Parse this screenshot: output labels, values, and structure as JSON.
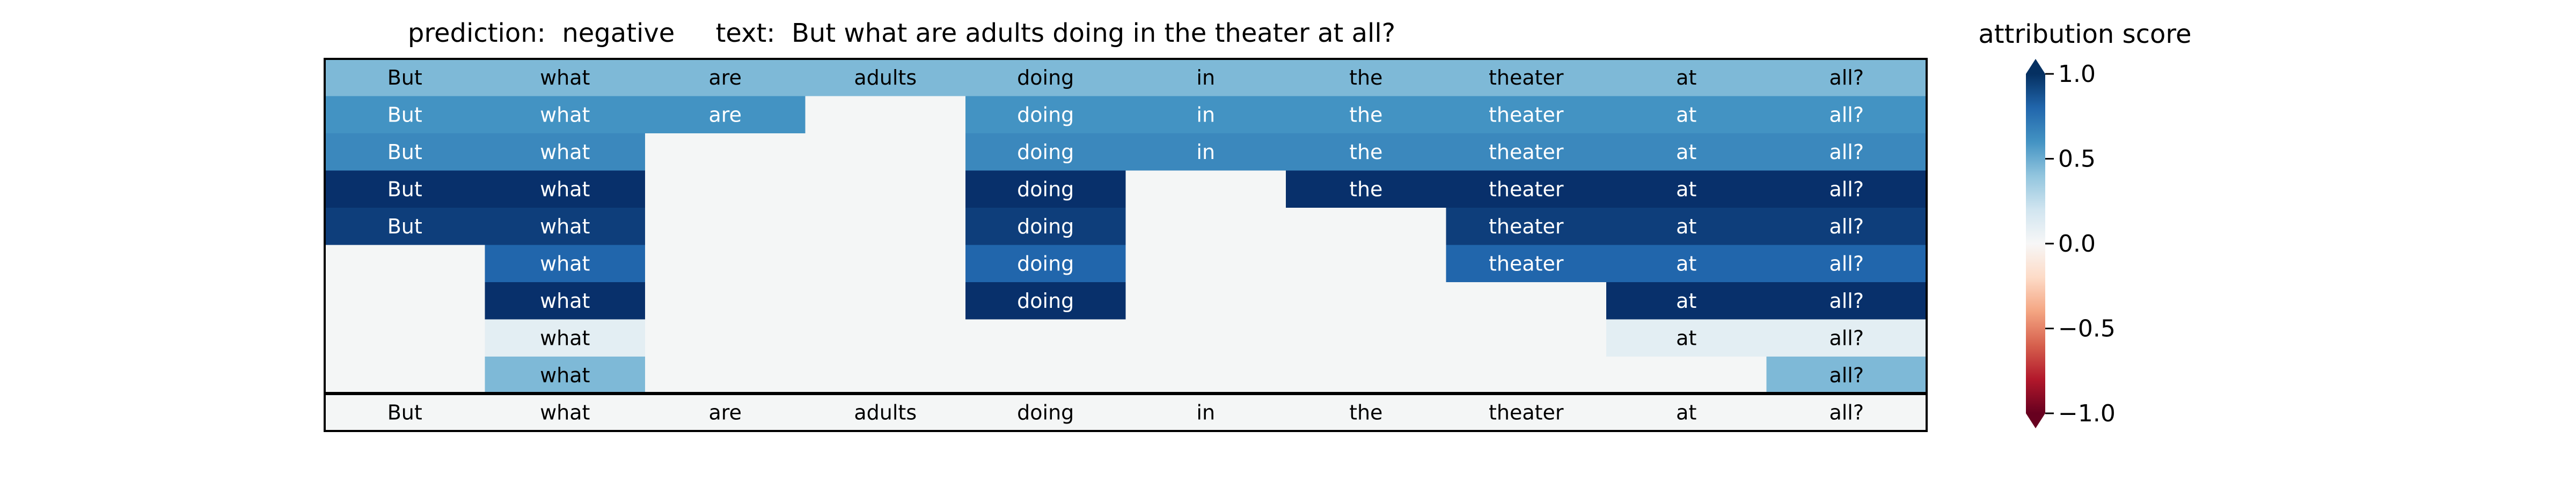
{
  "title": "prediction:  negative     text:  But what are adults doing in the theater at all?",
  "colorbar": {
    "title": "attribution score",
    "ticks": [
      "1.0",
      "0.5",
      "0.0",
      "−0.5",
      "−1.0"
    ],
    "tick_values": [
      1.0,
      0.5,
      0.0,
      -0.5,
      -1.0
    ],
    "colormap": "RdBu"
  },
  "chart_data": {
    "type": "heatmap",
    "title": "prediction:  negative     text:  But what are adults doing in the theater at all?",
    "tokens": [
      "But",
      "what",
      "are",
      "adults",
      "doing",
      "in",
      "the",
      "theater",
      "at",
      "all?"
    ],
    "value_range": [
      -1.0,
      1.0
    ],
    "rows": [
      [
        0.45,
        0.45,
        0.45,
        0.45,
        0.45,
        0.45,
        0.45,
        0.45,
        0.45,
        0.45
      ],
      [
        0.6,
        0.6,
        0.6,
        null,
        0.6,
        0.6,
        0.6,
        0.6,
        0.6,
        0.6
      ],
      [
        0.65,
        0.65,
        null,
        null,
        0.65,
        0.65,
        0.65,
        0.65,
        0.65,
        0.65
      ],
      [
        1.0,
        1.0,
        null,
        null,
        1.0,
        null,
        1.0,
        1.0,
        1.0,
        1.0
      ],
      [
        0.95,
        0.95,
        null,
        null,
        0.95,
        null,
        null,
        0.95,
        0.95,
        0.95
      ],
      [
        null,
        0.8,
        null,
        null,
        0.8,
        null,
        null,
        0.8,
        0.8,
        0.8
      ],
      [
        null,
        1.0,
        null,
        null,
        1.0,
        null,
        null,
        null,
        1.0,
        1.0
      ],
      [
        null,
        0.1,
        null,
        null,
        null,
        null,
        null,
        null,
        0.1,
        0.1
      ],
      [
        null,
        0.45,
        null,
        null,
        null,
        null,
        null,
        null,
        null,
        0.45
      ]
    ],
    "bottom_row": [
      "But",
      "what",
      "are",
      "adults",
      "doing",
      "in",
      "the",
      "theater",
      "at",
      "all?"
    ]
  }
}
